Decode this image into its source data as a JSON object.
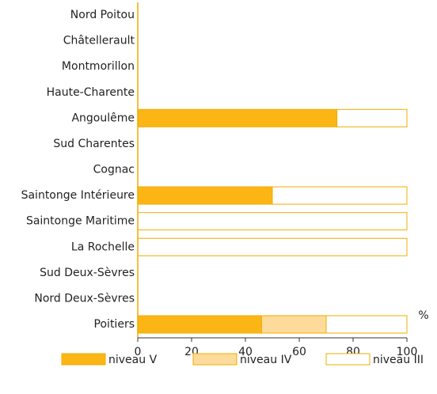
{
  "chart_data": {
    "type": "stacked-bar-horizontal",
    "categories": [
      "Nord Poitou",
      "Châtellerault",
      "Montmorillon",
      "Haute-Charente",
      "Angoulême",
      "Sud Charentes",
      "Cognac",
      "Saintonge Intérieure",
      "Saintonge Maritime",
      "La Rochelle",
      "Sud Deux-Sèvres",
      "Nord Deux-Sèvres",
      "Poitiers"
    ],
    "series": [
      {
        "name": "niveau V",
        "color": "#fbb615",
        "values": [
          0,
          0,
          0,
          0,
          74,
          0,
          0,
          50,
          0,
          0,
          0,
          0,
          46
        ]
      },
      {
        "name": "niveau IV",
        "color": "#fddb9a",
        "values": [
          0,
          0,
          0,
          0,
          0,
          0,
          0,
          0,
          0,
          0,
          0,
          0,
          24
        ]
      },
      {
        "name": "niveau III",
        "color": "#ffffff",
        "values": [
          0,
          0,
          0,
          0,
          26,
          0,
          0,
          50,
          100,
          100,
          0,
          0,
          30
        ]
      }
    ],
    "xlabel": "%",
    "xlim": [
      0,
      100
    ],
    "xticks": [
      0,
      20,
      40,
      60,
      80,
      100
    ],
    "stroke": "#f2ac00"
  }
}
